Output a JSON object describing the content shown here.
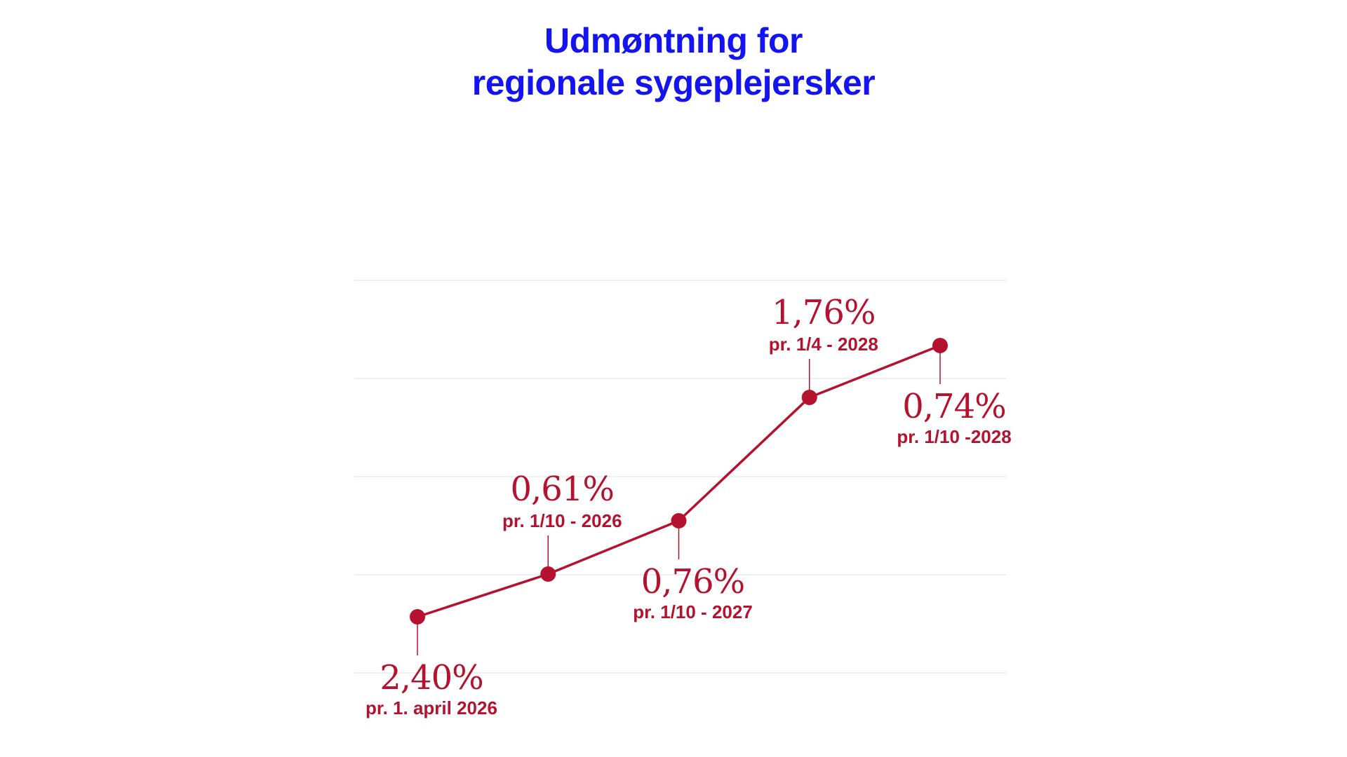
{
  "colors": {
    "title": "#1414f0",
    "accent": "#b5122f",
    "grid": "#ececec",
    "background": "#ffffff"
  },
  "chart_data": {
    "type": "line",
    "title_lines": [
      "Udmøntning for",
      "regionale sygeplejersker"
    ],
    "xlabel": "",
    "ylabel": "",
    "grid": true,
    "points": [
      {
        "date": "2026-04-01",
        "value_label": "2,40%",
        "date_label": "pr. 1. april 2026",
        "cumulative": 2.4
      },
      {
        "date": "2026-10-01",
        "value_label": "0,61%",
        "date_label": "pr. 1/10 - 2026",
        "cumulative": 3.01
      },
      {
        "date": "2027-10-01",
        "value_label": "0,76%",
        "date_label": "pr. 1/10 - 2027",
        "cumulative": 3.77
      },
      {
        "date": "2028-04-01",
        "value_label": "1,76%",
        "date_label": "pr. 1/4 - 2028",
        "cumulative": 5.53
      },
      {
        "date": "2028-10-01",
        "value_label": "0,74%",
        "date_label": "pr. 1/10 -2028",
        "cumulative": 6.27
      }
    ]
  }
}
